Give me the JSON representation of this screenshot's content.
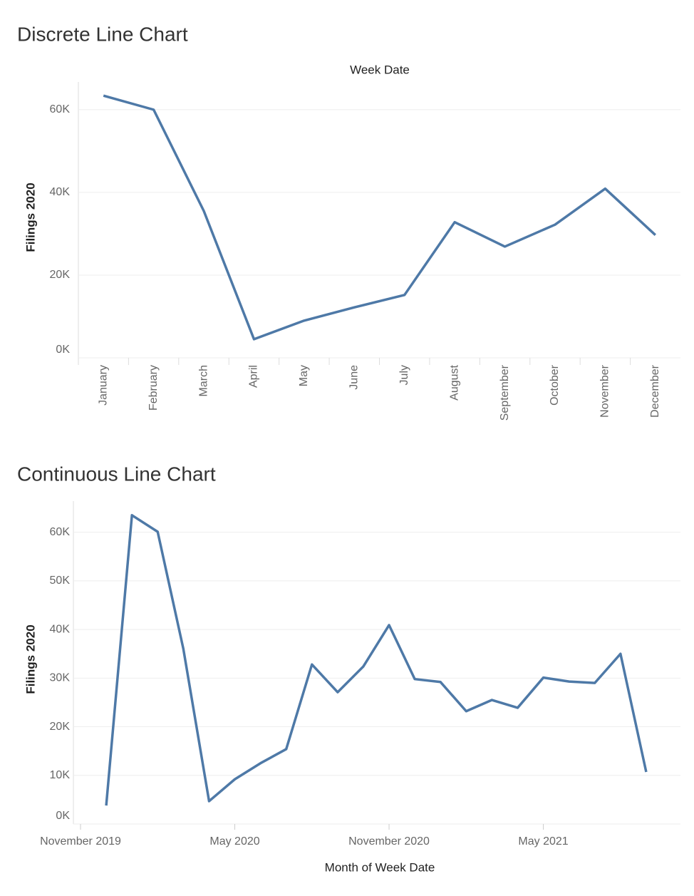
{
  "chart_data": [
    {
      "type": "line",
      "title": "Discrete Line Chart",
      "x_label": "Week Date",
      "y_label": "Filings 2020",
      "categories": [
        "January",
        "February",
        "March",
        "April",
        "May",
        "June",
        "July",
        "August",
        "September",
        "October",
        "November",
        "December"
      ],
      "series": [
        {
          "name": "Filings 2020",
          "color": "#4e79a7",
          "values": [
            63400,
            60000,
            35500,
            4500,
            9000,
            12200,
            15200,
            32800,
            26900,
            32200,
            40900,
            29700
          ]
        }
      ],
      "ylim": [
        0,
        66700
      ],
      "yticks": [
        {
          "value": 0,
          "label": "0K"
        },
        {
          "value": 20000,
          "label": "20K"
        },
        {
          "value": 40000,
          "label": "40K"
        },
        {
          "value": 60000,
          "label": "60K"
        }
      ],
      "grid": true
    },
    {
      "type": "line",
      "title": "Continuous Line Chart",
      "x_label": "Month of Week Date",
      "y_label": "Filings 2020",
      "x": [
        "2019-12",
        "2020-01",
        "2020-02",
        "2020-03",
        "2020-04",
        "2020-05",
        "2020-06",
        "2020-07",
        "2020-08",
        "2020-09",
        "2020-10",
        "2020-11",
        "2020-12",
        "2021-01",
        "2021-02",
        "2021-03",
        "2021-04",
        "2021-05",
        "2021-06",
        "2021-07",
        "2021-08",
        "2021-09"
      ],
      "series": [
        {
          "name": "Filings 2020",
          "color": "#4e79a7",
          "values": [
            3800,
            63500,
            60100,
            36000,
            4700,
            9200,
            12500,
            15400,
            32800,
            27100,
            32400,
            40900,
            29800,
            29200,
            23200,
            25500,
            23900,
            30100,
            29300,
            29000,
            35000,
            10700
          ]
        }
      ],
      "xlim": [
        "2019-11",
        "2021-10"
      ],
      "xticks": [
        {
          "value": "2019-11",
          "label": "November 2019"
        },
        {
          "value": "2020-05",
          "label": "May 2020"
        },
        {
          "value": "2020-11",
          "label": "November 2020"
        },
        {
          "value": "2021-05",
          "label": "May 2021"
        }
      ],
      "ylim": [
        0,
        66400
      ],
      "yticks": [
        {
          "value": 0,
          "label": "0K"
        },
        {
          "value": 10000,
          "label": "10K"
        },
        {
          "value": 20000,
          "label": "20K"
        },
        {
          "value": 30000,
          "label": "30K"
        },
        {
          "value": 40000,
          "label": "40K"
        },
        {
          "value": 50000,
          "label": "50K"
        },
        {
          "value": 60000,
          "label": "60K"
        }
      ],
      "grid": true
    }
  ]
}
